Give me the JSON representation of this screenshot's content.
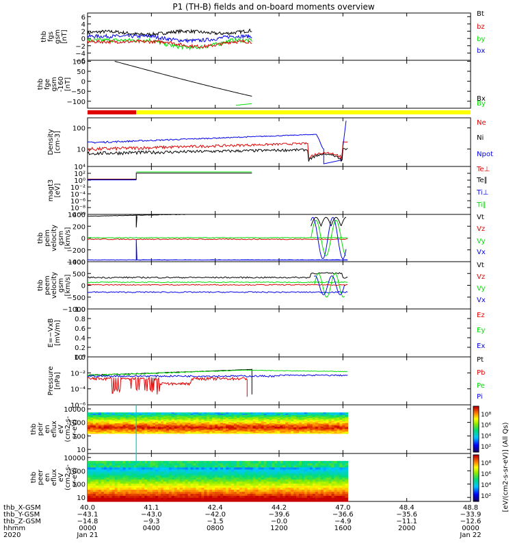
{
  "title": "P1 (TH-B) fields and on-board moments overview",
  "colors": {
    "black": "#000000",
    "red": "#e00000",
    "green": "#00dd00",
    "blue": "#0000ee",
    "yellow": "#ffff00",
    "orange": "#ff8800",
    "cyan": "#00cccc"
  },
  "chart_data": {
    "type": "line",
    "x": {
      "unit": "hhmm UT",
      "range_hours": [
        0,
        24
      ]
    },
    "panels": [
      {
        "id": "fgs-gsm",
        "ylabel": [
          "thb",
          "fgs",
          "gsm",
          "[nT]"
        ],
        "scale": "linear",
        "ylim": [
          -6,
          7
        ],
        "ticks": [
          6,
          4,
          2,
          0,
          -2,
          -4,
          -6
        ],
        "series": [
          {
            "name": "Bt",
            "color": "#000000"
          },
          {
            "name": "bz",
            "color": "#e00000"
          },
          {
            "name": "by",
            "color": "#00dd00"
          },
          {
            "name": "bx",
            "color": "#0000ee"
          }
        ]
      },
      {
        "id": "fge-gsm",
        "ylabel": [
          "thb",
          "fge",
          "gsm",
          "-160",
          "[nT]"
        ],
        "scale": "linear",
        "ylim": [
          -135,
          105
        ],
        "ticks": [
          100,
          50,
          0,
          -50,
          -100
        ],
        "series": [
          {
            "name": "Bx",
            "color": "#000000"
          },
          {
            "name": "By",
            "color": "#00dd00"
          }
        ]
      },
      {
        "id": "density",
        "ylabel": [
          "Density",
          "[cm-3]"
        ],
        "scale": "log",
        "ylim": [
          1.5,
          300
        ],
        "ticks": [
          {
            "v": 100,
            "label": "100"
          },
          {
            "v": 10,
            "label": "10"
          }
        ],
        "series": [
          {
            "name": "Ne",
            "color": "#e00000"
          },
          {
            "name": "Ni",
            "color": "#000000"
          },
          {
            "name": "Npot",
            "color": "#0000ee"
          }
        ]
      },
      {
        "id": "magt3",
        "ylabel": [
          "magt3",
          "[eV]"
        ],
        "scale": "log",
        "ylim": [
          1e-10,
          10000.0
        ],
        "ticks": [
          {
            "v": 10000.0,
            "label": "10⁴"
          },
          {
            "v": 100,
            "label": "10²"
          },
          {
            "v": 1,
            "label": "10⁰"
          },
          {
            "v": 0.01,
            "label": "10⁻²"
          },
          {
            "v": 0.0001,
            "label": "10⁻⁴"
          },
          {
            "v": 1e-06,
            "label": "10⁻⁶"
          },
          {
            "v": 1e-08,
            "label": "10⁻⁸"
          },
          {
            "v": 1e-10,
            "label": "10⁻¹⁰"
          }
        ],
        "series": [
          {
            "name": "Te⊥",
            "color": "#e00000"
          },
          {
            "name": "Te∥",
            "color": "#000000"
          },
          {
            "name": "Ti⊥",
            "color": "#0000ee"
          },
          {
            "name": "Ti∥",
            "color": "#00dd00"
          }
        ]
      },
      {
        "id": "peim",
        "ylabel": [
          "thb",
          "peim",
          "velocity",
          "gsm",
          "[km/s]"
        ],
        "scale": "linear",
        "ylim": [
          -400,
          400
        ],
        "ticks": [
          {
            "v": 400,
            "label": "400"
          },
          {
            "v": 200,
            "label": "200"
          },
          {
            "v": 0,
            "label": "0"
          },
          {
            "v": -200,
            "label": "−200"
          },
          {
            "v": -400,
            "label": "−400"
          }
        ],
        "series": [
          {
            "name": "Vt",
            "color": "#000000"
          },
          {
            "name": "Vz",
            "color": "#e00000"
          },
          {
            "name": "Vy",
            "color": "#00dd00"
          },
          {
            "name": "Vx",
            "color": "#0000ee"
          }
        ]
      },
      {
        "id": "peem",
        "ylabel": [
          "thb",
          "peem",
          "velocity",
          "gsm",
          "[km/s]"
        ],
        "scale": "linear",
        "ylim": [
          -1000,
          1000
        ],
        "ticks": [
          {
            "v": 1000,
            "label": "1000"
          },
          {
            "v": 500,
            "label": "500"
          },
          {
            "v": 0,
            "label": "0"
          },
          {
            "v": -500,
            "label": "−500"
          },
          {
            "v": -1000,
            "label": "−1000"
          }
        ],
        "series": [
          {
            "name": "Vt",
            "color": "#000000"
          },
          {
            "name": "Vz",
            "color": "#e00000"
          },
          {
            "name": "Vy",
            "color": "#00dd00"
          },
          {
            "name": "Vx",
            "color": "#0000ee"
          }
        ]
      },
      {
        "id": "efield",
        "ylabel": [
          "E=−VxB",
          "[mV/m]"
        ],
        "scale": "linear",
        "ylim": [
          0,
          1
        ],
        "ticks": [
          {
            "v": 1,
            "label": "1.0"
          },
          {
            "v": 0.8,
            "label": "0.8"
          },
          {
            "v": 0.6,
            "label": "0.6"
          },
          {
            "v": 0.4,
            "label": "0.4"
          },
          {
            "v": 0.2,
            "label": "0.2"
          },
          {
            "v": 0,
            "label": "0.0"
          }
        ],
        "series": [
          {
            "name": "Ez",
            "color": "#e00000"
          },
          {
            "name": "Ey",
            "color": "#00dd00"
          },
          {
            "name": "Ex",
            "color": "#0000ee"
          }
        ]
      },
      {
        "id": "pressure",
        "ylabel": [
          "Pressure",
          "[nPa]"
        ],
        "scale": "log",
        "ylim": [
          1e-06,
          1
        ],
        "ticks": [
          {
            "v": 1,
            "label": "10⁰"
          },
          {
            "v": 0.01,
            "label": "10⁻²"
          },
          {
            "v": 0.0001,
            "label": "10⁻⁴"
          },
          {
            "v": 1e-06,
            "label": "10⁻⁶"
          }
        ],
        "series": [
          {
            "name": "Pt",
            "color": "#000000"
          },
          {
            "name": "Pb",
            "color": "#e00000"
          },
          {
            "name": "Pe",
            "color": "#00dd00"
          },
          {
            "name": "Pi",
            "color": "#0000ee"
          }
        ]
      },
      {
        "id": "peir",
        "ylabel": [
          "thb",
          "peir",
          "en",
          "eflux",
          "eV",
          "(cm2-s-",
          "sr-eV)"
        ],
        "scale": "log",
        "ylim": [
          5,
          20000
        ],
        "ticks": [
          {
            "v": 10000,
            "label": "10000"
          },
          {
            "v": 1000,
            "label": "1000"
          },
          {
            "v": 100,
            "label": "100"
          },
          {
            "v": 10,
            "label": "10"
          }
        ]
      },
      {
        "id": "peer",
        "ylabel": [
          "thb",
          "peer",
          "en",
          "eflux",
          "eV",
          "(cm2-s-",
          "sr-eV)"
        ],
        "scale": "log",
        "ylim": [
          5,
          20000
        ],
        "ticks": [
          {
            "v": 10000,
            "label": "10000"
          },
          {
            "v": 1000,
            "label": "1000"
          },
          {
            "v": 100,
            "label": "100"
          },
          {
            "v": 10,
            "label": "10"
          }
        ]
      }
    ],
    "colorbar": {
      "label": "[eV/(cm2-s-sr-eV)] (All Qs)",
      "ticks": [
        {
          "v": 8,
          "label": "10⁸"
        },
        {
          "v": 6,
          "label": "10⁶"
        },
        {
          "v": 4,
          "label": "10⁴"
        },
        {
          "v": 2,
          "label": "10²"
        }
      ]
    },
    "axis_rows": [
      {
        "label": "thb_X-GSM",
        "values": [
          "40.0",
          "41.1",
          "42.4",
          "44.2",
          "47.0",
          "48.4",
          "48.8"
        ]
      },
      {
        "label": "thb_Y-GSM",
        "values": [
          "−43.1",
          "−43.0",
          "−42.0",
          "−39.6",
          "−36.6",
          "−35.6",
          "−33.9"
        ]
      },
      {
        "label": "thb_Z-GSM",
        "values": [
          "−14.8",
          "−9.3",
          "−1.5",
          "−0.0",
          "−4.9",
          "−11.1",
          "−12.6"
        ]
      },
      {
        "label": "hhmm",
        "values": [
          "0000",
          "0400",
          "0800",
          "1200",
          "1600",
          "2000",
          "0000"
        ]
      },
      {
        "label": "2020",
        "values": [
          "Jan 21",
          "",
          "",
          "",
          "",
          "",
          "Jan 22"
        ]
      }
    ]
  }
}
